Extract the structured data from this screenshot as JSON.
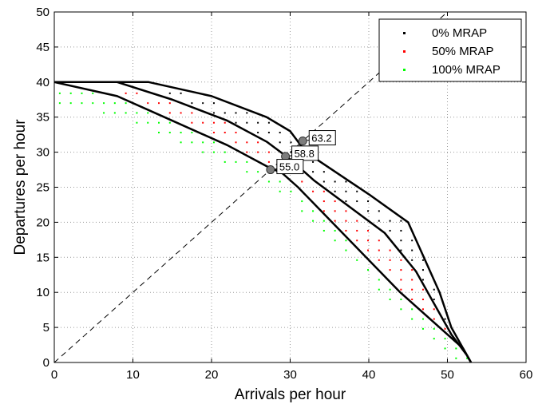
{
  "chart_data": {
    "type": "scatter",
    "xlabel": "Arrivals per hour",
    "ylabel": "Departures per hour",
    "xlim": [
      0,
      60
    ],
    "ylim": [
      0,
      50
    ],
    "xticks": [
      0,
      10,
      20,
      30,
      40,
      50,
      60
    ],
    "yticks": [
      0,
      5,
      10,
      15,
      20,
      25,
      30,
      35,
      40,
      45,
      50
    ],
    "grid": true,
    "legend_position": "top-right",
    "series": [
      {
        "name": "0% MRAP",
        "color": "#000000"
      },
      {
        "name": "50% MRAP",
        "color": "#ff0000"
      },
      {
        "name": "100% MRAP",
        "color": "#00ff00"
      }
    ],
    "envelopes": [
      {
        "series": "0% MRAP",
        "points": [
          [
            0,
            40
          ],
          [
            12,
            40
          ],
          [
            20,
            38
          ],
          [
            27,
            35
          ],
          [
            30,
            33
          ],
          [
            32,
            30
          ],
          [
            40,
            24
          ],
          [
            45,
            20
          ],
          [
            47,
            15
          ],
          [
            49,
            10
          ],
          [
            50.5,
            5
          ],
          [
            52,
            2
          ],
          [
            53,
            0
          ]
        ]
      },
      {
        "series": "50% MRAP",
        "points": [
          [
            0,
            40
          ],
          [
            8,
            40
          ],
          [
            15,
            37.5
          ],
          [
            22,
            34.5
          ],
          [
            27,
            31.5
          ],
          [
            30,
            29
          ],
          [
            33,
            26
          ],
          [
            42,
            18.5
          ],
          [
            46,
            13
          ],
          [
            48.5,
            8
          ],
          [
            50.5,
            4
          ],
          [
            52.5,
            1
          ],
          [
            53,
            0
          ]
        ]
      },
      {
        "series": "100% MRAP",
        "points": [
          [
            0,
            40
          ],
          [
            8,
            38
          ],
          [
            14,
            35
          ],
          [
            22,
            31
          ],
          [
            27,
            28
          ],
          [
            29,
            27
          ],
          [
            31,
            25
          ],
          [
            44,
            10
          ],
          [
            48,
            6
          ],
          [
            52,
            2
          ],
          [
            53,
            0
          ]
        ]
      }
    ],
    "diagonal": {
      "from": [
        0,
        0
      ],
      "to": [
        50,
        50
      ],
      "style": "dashed"
    },
    "callouts": [
      {
        "label": "63.2",
        "x": 31.6,
        "y": 31.6
      },
      {
        "label": "58.8",
        "x": 29.4,
        "y": 29.4
      },
      {
        "label": "55.0",
        "x": 27.5,
        "y": 27.5
      }
    ]
  }
}
